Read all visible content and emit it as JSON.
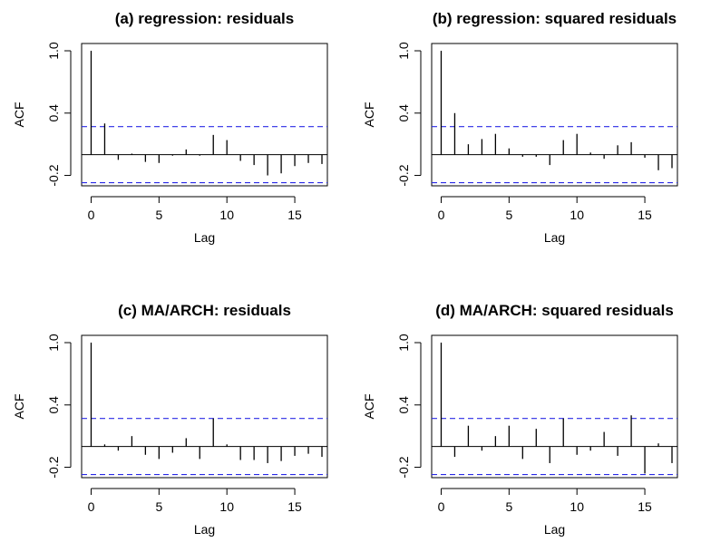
{
  "chart_data": [
    {
      "type": "bar",
      "title": "(a) regression: residuals",
      "xlabel": "Lag",
      "ylabel": "ACF",
      "xlim": [
        -0.7,
        17.4
      ],
      "ylim": [
        -0.3,
        1.07
      ],
      "xticks": [
        "0",
        "5",
        "10",
        "15"
      ],
      "yticks": [
        "-0.2",
        "0.4",
        "1.0"
      ],
      "ci": 0.27,
      "lags": [
        0,
        1,
        2,
        3,
        4,
        5,
        6,
        7,
        8,
        9,
        10,
        11,
        12,
        13,
        14,
        15,
        16,
        17
      ],
      "values": [
        1.0,
        0.3,
        -0.05,
        0.01,
        -0.07,
        -0.08,
        -0.01,
        0.05,
        -0.01,
        0.19,
        0.14,
        -0.06,
        -0.1,
        -0.2,
        -0.18,
        -0.11,
        -0.08,
        -0.09
      ]
    },
    {
      "type": "bar",
      "title": "(b) regression: squared residuals",
      "xlabel": "Lag",
      "ylabel": "ACF",
      "xlim": [
        -0.7,
        17.4
      ],
      "ylim": [
        -0.3,
        1.07
      ],
      "xticks": [
        "0",
        "5",
        "10",
        "15"
      ],
      "yticks": [
        "-0.2",
        "0.4",
        "1.0"
      ],
      "ci": 0.27,
      "lags": [
        0,
        1,
        2,
        3,
        4,
        5,
        6,
        7,
        8,
        9,
        10,
        11,
        12,
        13,
        14,
        15,
        16,
        17
      ],
      "values": [
        1.0,
        0.4,
        0.1,
        0.15,
        0.2,
        0.06,
        -0.02,
        -0.02,
        -0.1,
        0.14,
        0.2,
        0.02,
        -0.04,
        0.09,
        0.12,
        -0.03,
        -0.15,
        -0.13
      ]
    },
    {
      "type": "bar",
      "title": "(c) MA/ARCH: residuals",
      "xlabel": "Lag",
      "ylabel": "ACF",
      "xlim": [
        -0.7,
        17.4
      ],
      "ylim": [
        -0.3,
        1.07
      ],
      "xticks": [
        "0",
        "5",
        "10",
        "15"
      ],
      "yticks": [
        "-0.2",
        "0.4",
        "1.0"
      ],
      "ci": 0.27,
      "lags": [
        0,
        1,
        2,
        3,
        4,
        5,
        6,
        7,
        8,
        9,
        10,
        11,
        12,
        13,
        14,
        15,
        16,
        17
      ],
      "values": [
        1.0,
        0.02,
        -0.04,
        0.1,
        -0.08,
        -0.12,
        -0.06,
        0.08,
        -0.12,
        0.27,
        0.02,
        -0.13,
        -0.13,
        -0.16,
        -0.14,
        -0.09,
        -0.07,
        -0.1
      ]
    },
    {
      "type": "bar",
      "title": "(d) MA/ARCH: squared residuals",
      "xlabel": "Lag",
      "ylabel": "ACF",
      "xlim": [
        -0.7,
        17.4
      ],
      "ylim": [
        -0.3,
        1.07
      ],
      "xticks": [
        "0",
        "5",
        "10",
        "15"
      ],
      "yticks": [
        "-0.2",
        "0.4",
        "1.0"
      ],
      "ci": 0.27,
      "lags": [
        0,
        1,
        2,
        3,
        4,
        5,
        6,
        7,
        8,
        9,
        10,
        11,
        12,
        13,
        14,
        15,
        16,
        17
      ],
      "values": [
        1.0,
        -0.1,
        0.2,
        -0.04,
        0.1,
        0.2,
        -0.12,
        0.17,
        -0.16,
        0.27,
        -0.08,
        -0.04,
        0.14,
        -0.09,
        0.3,
        -0.26,
        0.03,
        -0.16
      ]
    }
  ],
  "colors": {
    "confidence_band": "#2a2ae6",
    "bars": "#000000"
  }
}
